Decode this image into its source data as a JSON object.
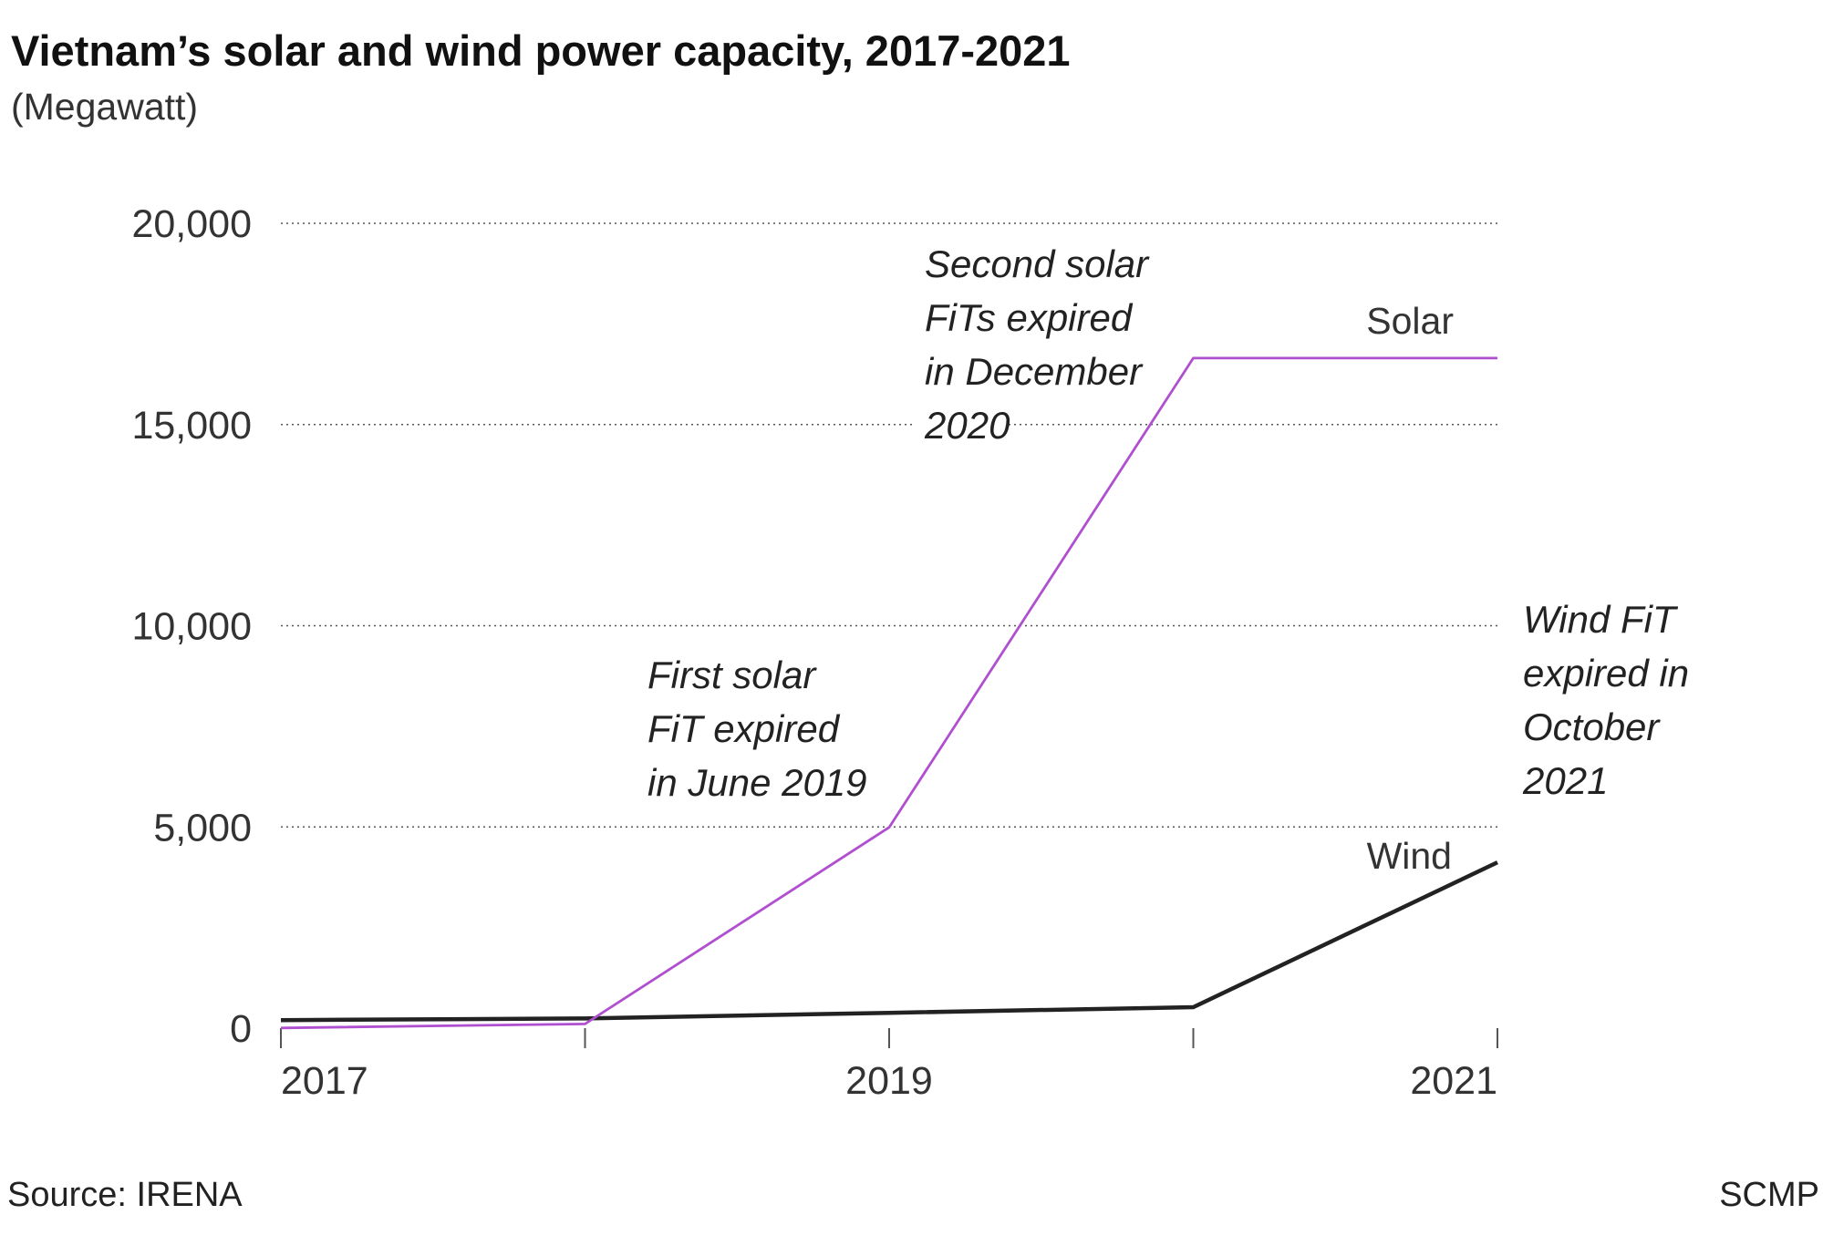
{
  "chart_data": {
    "type": "line",
    "title": "Vietnam’s solar and wind power capacity, 2017-2021",
    "subtitle": "(Megawatt)",
    "x": [
      2017,
      2018,
      2019,
      2020,
      2021
    ],
    "xticks": [
      2017,
      2018,
      2019,
      2020,
      2021
    ],
    "xtick_labels": [
      "2017",
      "",
      "2019",
      "",
      "2021"
    ],
    "xlim": [
      2017,
      2021
    ],
    "ylim": [
      0,
      20000
    ],
    "yticks": [
      0,
      5000,
      10000,
      15000,
      20000
    ],
    "ytick_labels": [
      "0",
      "5,000",
      "10,000",
      "15,000",
      "20,000"
    ],
    "grid": "horizontal-dotted",
    "series": [
      {
        "name": "Solar",
        "color": "#b04fcf",
        "values": [
          5,
          105,
          4990,
          16650,
          16650
        ]
      },
      {
        "name": "Wind",
        "color": "#222222",
        "values": [
          200,
          240,
          380,
          520,
          4120
        ]
      }
    ],
    "annotations": [
      {
        "lines": [
          "Second solar",
          "FiTs expired",
          "in December",
          "2020"
        ]
      },
      {
        "lines": [
          "First solar",
          "FiT expired",
          "in June 2019"
        ]
      },
      {
        "lines": [
          "Wind FiT",
          "expired in",
          "October",
          "2021"
        ]
      }
    ]
  },
  "footer": {
    "source": "Source: IRENA",
    "brand": "SCMP"
  }
}
